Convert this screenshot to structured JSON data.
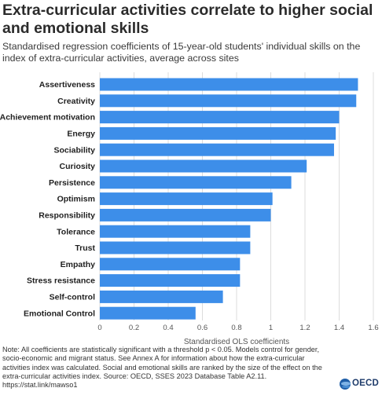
{
  "page": {
    "note": "Note: All coefficients are statistically significant with a threshold p < 0.05. Models control for gender, socio-economic and migrant status. See Annex A for information about how the extra-curricular activities index was calculated. Social and emotional skills are ranked by the size of the effect on the extra-curricular activities index. Source: OECD, SSES 2023 Database Table A2.11. https://stat.link/mawso1",
    "logo_text": "OECD"
  },
  "colors": {
    "bar": "#3d8ee9",
    "grid": "#dcdcdc",
    "text": "#1f1f1f"
  },
  "chart_data": {
    "type": "bar",
    "orientation": "horizontal",
    "title": "Extra-curricular activities correlate to higher social and emotional skills",
    "subtitle": "Standardised regression coefficients of 15-year-old students' individual skills on the index of extra-curricular activities, average across sites",
    "xlabel": "Standardised OLS coefficients",
    "ylabel": "",
    "xlim": [
      0,
      1.6
    ],
    "xticks": [
      "0",
      "0.2",
      "0.4",
      "0.6",
      "0.8",
      "1",
      "1.2",
      "1.4",
      "1.6"
    ],
    "grid": true,
    "categories": [
      "Assertiveness",
      "Creativity",
      "Achievement motivation",
      "Energy",
      "Sociability",
      "Curiosity",
      "Persistence",
      "Optimism",
      "Responsibility",
      "Tolerance",
      "Trust",
      "Empathy",
      "Stress resistance",
      "Self-control",
      "Emotional Control"
    ],
    "values": [
      1.51,
      1.5,
      1.4,
      1.38,
      1.37,
      1.21,
      1.12,
      1.01,
      1.0,
      0.88,
      0.88,
      0.82,
      0.82,
      0.72,
      0.56
    ]
  }
}
